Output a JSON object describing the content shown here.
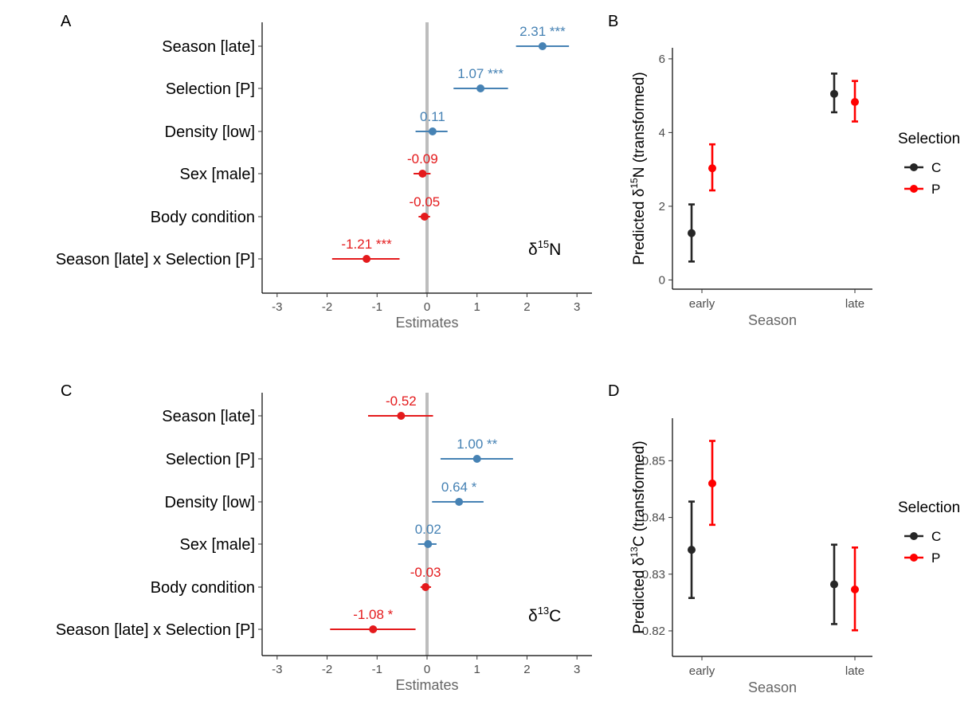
{
  "chart_data": [
    {
      "panel": "A",
      "type": "forest",
      "annotation_base": "δ",
      "annotation_sup": "15",
      "annotation_elem": "N",
      "xlabel": "Estimates",
      "xlim": [
        -3.3,
        3.3
      ],
      "xticks": [
        -3,
        -2,
        -1,
        0,
        1,
        2,
        3
      ],
      "xtick_labels": [
        "-3",
        "-2",
        "-1",
        "0",
        "1",
        "2",
        "3"
      ],
      "terms": [
        "Season [late]",
        "Selection [P]",
        "Density [low]",
        "Sex [male]",
        "Body condition",
        "Season [late] x Selection [P]"
      ],
      "estimates": [
        2.31,
        1.07,
        0.11,
        -0.09,
        -0.05,
        -1.21
      ],
      "ci_low": [
        1.78,
        0.53,
        -0.23,
        -0.27,
        -0.17,
        -1.9
      ],
      "ci_high": [
        2.84,
        1.62,
        0.41,
        0.07,
        0.06,
        -0.55
      ],
      "labels": [
        "2.31 ***",
        "1.07 ***",
        "0.11",
        "-0.09",
        "-0.05",
        "-1.21 ***"
      ],
      "colors": [
        "#4682B4",
        "#4682B4",
        "#4682B4",
        "#E41A1C",
        "#E41A1C",
        "#E41A1C"
      ]
    },
    {
      "panel": "B",
      "type": "errorbar",
      "ylabel_pre": "Predicted δ",
      "ylabel_sup": "15",
      "ylabel_post": "N (transformed)",
      "xlabel": "Season",
      "categories": [
        "early",
        "late"
      ],
      "ylim": [
        -0.25,
        6.3
      ],
      "yticks": [
        0,
        2,
        4,
        6
      ],
      "ytick_labels": [
        "0",
        "2",
        "4",
        "6"
      ],
      "legend_title": "Selection",
      "series": [
        {
          "name": "C",
          "color": "#262626",
          "values": [
            1.27,
            5.05
          ],
          "lower": [
            0.5,
            4.55
          ],
          "upper": [
            2.05,
            5.6
          ]
        },
        {
          "name": "P",
          "color": "#FF0000",
          "values": [
            3.03,
            4.83
          ],
          "lower": [
            2.43,
            4.3
          ],
          "upper": [
            3.68,
            5.4
          ]
        }
      ]
    },
    {
      "panel": "C",
      "type": "forest",
      "annotation_base": "δ",
      "annotation_sup": "13",
      "annotation_elem": "C",
      "xlabel": "Estimates",
      "xlim": [
        -3.3,
        3.3
      ],
      "xticks": [
        -3,
        -2,
        -1,
        0,
        1,
        2,
        3
      ],
      "xtick_labels": [
        "-3",
        "-2",
        "-1",
        "0",
        "1",
        "2",
        "3"
      ],
      "terms": [
        "Season [late]",
        "Selection [P]",
        "Density [low]",
        "Sex [male]",
        "Body condition",
        "Season [late] x Selection [P]"
      ],
      "estimates": [
        -0.52,
        1.0,
        0.64,
        0.02,
        -0.03,
        -1.08
      ],
      "ci_low": [
        -1.18,
        0.27,
        0.1,
        -0.18,
        -0.13,
        -1.94
      ],
      "ci_high": [
        0.12,
        1.72,
        1.13,
        0.19,
        0.08,
        -0.23
      ],
      "labels": [
        "-0.52",
        "1.00 **",
        "0.64 *",
        "0.02",
        "-0.03",
        "-1.08 *"
      ],
      "colors": [
        "#E41A1C",
        "#4682B4",
        "#4682B4",
        "#4682B4",
        "#E41A1C",
        "#E41A1C"
      ]
    },
    {
      "panel": "D",
      "type": "errorbar",
      "ylabel_pre": "Predicted δ",
      "ylabel_sup": "13",
      "ylabel_post": "C (transformed)",
      "xlabel": "Season",
      "categories": [
        "early",
        "late"
      ],
      "ylim": [
        0.8155,
        0.8575
      ],
      "yticks": [
        0.82,
        0.83,
        0.84,
        0.85
      ],
      "ytick_labels": [
        "0.82",
        "0.83",
        "0.84",
        "0.85"
      ],
      "legend_title": "Selection",
      "series": [
        {
          "name": "C",
          "color": "#262626",
          "values": [
            0.8343,
            0.8282
          ],
          "lower": [
            0.8258,
            0.8212
          ],
          "upper": [
            0.8428,
            0.8352
          ]
        },
        {
          "name": "P",
          "color": "#FF0000",
          "values": [
            0.846,
            0.8273
          ],
          "lower": [
            0.8387,
            0.8201
          ],
          "upper": [
            0.8535,
            0.8347
          ]
        }
      ]
    }
  ]
}
